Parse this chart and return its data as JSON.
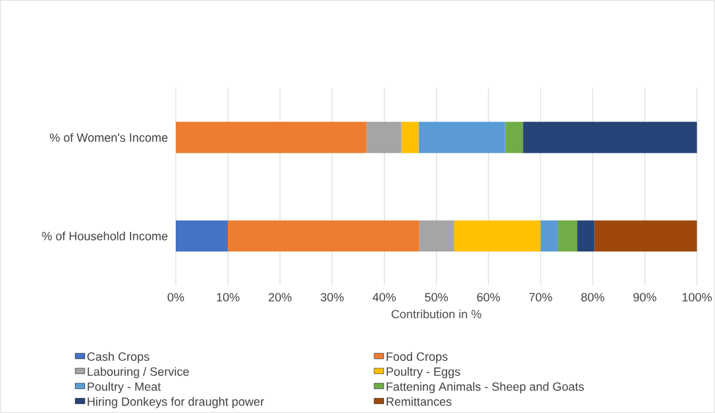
{
  "chart_data": {
    "type": "bar",
    "orientation": "horizontal",
    "stacked": true,
    "categories": [
      "% of Women's Income",
      "% of Household Income"
    ],
    "xlabel": "Contribution in %",
    "xlim": [
      0,
      100
    ],
    "xticks": [
      {
        "value": 0,
        "label": "0%"
      },
      {
        "value": 10,
        "label": "10%"
      },
      {
        "value": 20,
        "label": "20%"
      },
      {
        "value": 30,
        "label": "30%"
      },
      {
        "value": 40,
        "label": "40%"
      },
      {
        "value": 50,
        "label": "50%"
      },
      {
        "value": 60,
        "label": "60%"
      },
      {
        "value": 70,
        "label": "70%"
      },
      {
        "value": 80,
        "label": "80%"
      },
      {
        "value": 90,
        "label": "90%"
      },
      {
        "value": 100,
        "label": "100%"
      }
    ],
    "grid": "x",
    "legend": "bottom",
    "series": [
      {
        "name": "Cash Crops",
        "color": "#4472c4",
        "values": [
          0,
          10
        ]
      },
      {
        "name": "Food Crops",
        "color": "#ed7d31",
        "values": [
          36.6,
          36.7
        ]
      },
      {
        "name": "Labouring / Service",
        "color": "#a5a5a5",
        "values": [
          6.7,
          6.7
        ]
      },
      {
        "name": "Poultry - Eggs",
        "color": "#ffc000",
        "values": [
          3.3,
          16.6
        ]
      },
      {
        "name": "Poultry - Meat",
        "color": "#5b9bd5",
        "values": [
          16.6,
          3.3
        ]
      },
      {
        "name": "Fattening Animals - Sheep and Goats",
        "color": "#70ad47",
        "values": [
          3.4,
          3.7
        ]
      },
      {
        "name": "Hiring Donkeys for draught power",
        "color": "#264478",
        "values": [
          33.4,
          3.3
        ]
      },
      {
        "name": "Remittances",
        "color": "#9e480e",
        "values": [
          0,
          19.7
        ]
      }
    ]
  }
}
